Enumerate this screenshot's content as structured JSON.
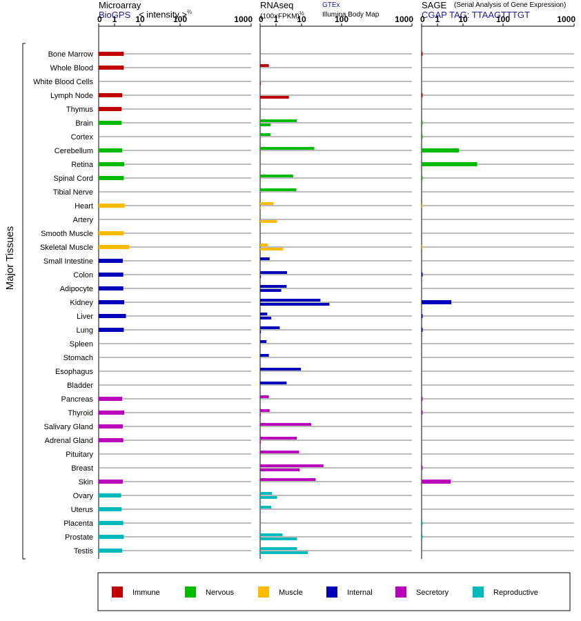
{
  "panels": [
    {
      "title": "Microarray",
      "subtitle": "BioGPS",
      "note": "< intensity >",
      "note_sup": "⅔",
      "ticks": [
        "0",
        "1",
        "10",
        "100",
        "1000"
      ]
    },
    {
      "title": "RNAseq",
      "note": "(100×FPKM)",
      "note_sup": "½",
      "legend_gtex": "GTEx",
      "legend_illumina": "Illumina Body Map",
      "ticks": [
        "0",
        "1",
        "10",
        "100",
        "1000"
      ]
    },
    {
      "title": "SAGE",
      "title_note": "(Serial Analysis of Gene Expression)",
      "subtitle": "CGAP TAG: TTAAGTTTGT",
      "ticks": [
        "0",
        "1",
        "10",
        "100",
        "1000"
      ]
    }
  ],
  "y_axis_label": "Major Tissues",
  "legend": [
    {
      "label": "Immune",
      "color": "#c00000"
    },
    {
      "label": "Nervous",
      "color": "#00bb00"
    },
    {
      "label": "Muscle",
      "color": "#ffbb00"
    },
    {
      "label": "Internal",
      "color": "#0000bb"
    },
    {
      "label": "Secretory",
      "color": "#bb00bb"
    },
    {
      "label": "Reproductive",
      "color": "#00bbbb"
    }
  ],
  "chart_data": {
    "type": "bar",
    "x_scale": "log-like, ticks 0, 1, 10, 100, 1000",
    "categories": [
      "Bone Marrow",
      "Whole Blood",
      "White Blood Cells",
      "Lymph Node",
      "Thymus",
      "Brain",
      "Cortex",
      "Cerebellum",
      "Retina",
      "Spinal Cord",
      "Tibial Nerve",
      "Heart",
      "Artery",
      "Smooth Muscle",
      "Skeletal Muscle",
      "Small Intestine",
      "Colon",
      "Adipocyte",
      "Kidney",
      "Liver",
      "Lung",
      "Spleen",
      "Stomach",
      "Esophagus",
      "Bladder",
      "Pancreas",
      "Thyroid",
      "Salivary Gland",
      "Adrenal Gland",
      "Pituitary",
      "Breast",
      "Skin",
      "Ovary",
      "Uterus",
      "Placenta",
      "Prostate",
      "Testis"
    ],
    "groups": [
      "Immune",
      "Immune",
      "Immune",
      "Immune",
      "Immune",
      "Nervous",
      "Nervous",
      "Nervous",
      "Nervous",
      "Nervous",
      "Nervous",
      "Muscle",
      "Muscle",
      "Muscle",
      "Muscle",
      "Internal",
      "Internal",
      "Internal",
      "Internal",
      "Internal",
      "Internal",
      "Internal",
      "Internal",
      "Internal",
      "Internal",
      "Secretory",
      "Secretory",
      "Secretory",
      "Secretory",
      "Secretory",
      "Secretory",
      "Secretory",
      "Reproductive",
      "Reproductive",
      "Reproductive",
      "Reproductive",
      "Reproductive"
    ],
    "series": [
      {
        "name": "BioGPS",
        "values": [
          2.3,
          2.3,
          null,
          2.0,
          1.9,
          1.9,
          null,
          2.0,
          2.4,
          2.3,
          null,
          2.5,
          null,
          2.3,
          3.8,
          2.1,
          2.2,
          2.2,
          2.4,
          2.8,
          2.3,
          null,
          null,
          null,
          null,
          2.0,
          2.4,
          2.1,
          2.2,
          null,
          null,
          2.1,
          1.8,
          1.9,
          2.2,
          2.3,
          2.0
        ]
      },
      {
        "name": "GTEx",
        "values": [
          null,
          0.55,
          null,
          null,
          null,
          6.5,
          0.65,
          17,
          null,
          4.7,
          6.3,
          0.85,
          null,
          null,
          0.5,
          0.6,
          2.7,
          2.6,
          22,
          0.45,
          1.4,
          0.4,
          0.55,
          9.5,
          2.6,
          0.55,
          0.6,
          15,
          6.5,
          8,
          25,
          18,
          0.75,
          0.7,
          null,
          1.8,
          6.6
        ]
      },
      {
        "name": "Illumina Body Map",
        "values": [
          null,
          null,
          0.05,
          3.2,
          null,
          0.65,
          null,
          null,
          null,
          null,
          null,
          0.05,
          1.1,
          null,
          1.9,
          null,
          0.05,
          1.6,
          32,
          0.7,
          0.05,
          null,
          null,
          null,
          null,
          null,
          0.05,
          null,
          0.05,
          null,
          8.5,
          null,
          1.1,
          null,
          null,
          6.6,
          13
        ]
      },
      {
        "name": "CGAP",
        "values": [
          0.04,
          null,
          null,
          0.04,
          null,
          0.03,
          0.03,
          7,
          18,
          0.03,
          null,
          0.02,
          null,
          null,
          0.02,
          null,
          0.04,
          null,
          3.5,
          0.04,
          0.04,
          null,
          null,
          null,
          null,
          0.03,
          0.03,
          null,
          null,
          null,
          0.04,
          3.3,
          null,
          null,
          0.03,
          0.03,
          null
        ]
      }
    ]
  }
}
